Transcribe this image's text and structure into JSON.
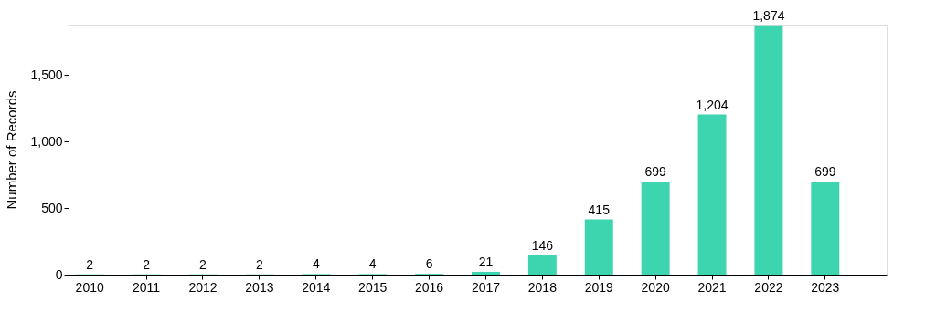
{
  "chart_data": {
    "type": "bar",
    "ylabel": "Number of Records",
    "categories": [
      "2010",
      "2011",
      "2012",
      "2013",
      "2014",
      "2015",
      "2016",
      "2017",
      "2018",
      "2019",
      "2020",
      "2021",
      "2022",
      "2023"
    ],
    "values": [
      2,
      2,
      2,
      2,
      4,
      4,
      6,
      21,
      146,
      415,
      699,
      1204,
      1874,
      699
    ],
    "value_labels": [
      "2",
      "2",
      "2",
      "2",
      "4",
      "4",
      "6",
      "21",
      "146",
      "415",
      "699",
      "1,204",
      "1,874",
      "699"
    ],
    "color": "#3dd4b0",
    "ylim": [
      0,
      1880
    ],
    "yticks": [
      0,
      500,
      {
        "value": 1000,
        "label": "1,000"
      },
      {
        "value": 1500,
        "label": "1,500"
      }
    ],
    "grid": false
  }
}
